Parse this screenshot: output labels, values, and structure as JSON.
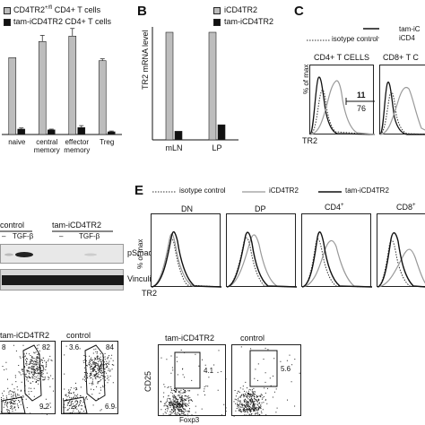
{
  "panelA": {
    "legend": [
      "CD4TR2+/fl CD4+ T cells",
      "tam-iCD4TR2 CD4+ T cells"
    ],
    "legend_sup": "+/fl",
    "categories": [
      "naive",
      "central\nmemory",
      "effector\nmemory",
      "Treg"
    ],
    "cat_line1": [
      "naive",
      "central",
      "effector",
      "Treg"
    ],
    "cat_line2": [
      "",
      "memory",
      "memory",
      ""
    ],
    "colors": {
      "control": "#bdbdbd",
      "tam": "#111111"
    }
  },
  "panelB": {
    "letter": "B",
    "legend": [
      "iCD4TR2",
      "tam-iCD4TR2"
    ],
    "ylabel": "TR2 mRNA level",
    "categories": [
      "mLN",
      "LP"
    ]
  },
  "panelC": {
    "letter": "C",
    "legend_dotted": "isotype control",
    "legend_right": [
      "tam-iC",
      "iCD4"
    ],
    "subplots": [
      "CD4+ T CELLS",
      "CD8+ T C"
    ],
    "ylabel": "% of max",
    "xlabel": "TR2",
    "gate_numbers": [
      "11",
      "76"
    ]
  },
  "panelD": {
    "col_labels": [
      "control",
      "tam-iCD4TR2"
    ],
    "treat_labels": [
      "–",
      "TGF-β",
      "–",
      "TGF-β"
    ],
    "row_labels": [
      "pSmad2",
      "Vinculin"
    ]
  },
  "panelE": {
    "letter": "E",
    "legend": [
      "isotype control",
      "iCD4TR2",
      "tam-iCD4TR2"
    ],
    "subplots": [
      "DN",
      "DP",
      "CD4+",
      "CD8+"
    ],
    "ylabel": "% of max",
    "xlabel": "TR2"
  },
  "panelF": {
    "labels": [
      "tam-iCD4TR2",
      "control"
    ],
    "left_numbers": [
      "8",
      "82",
      "9.2",
      "3.6",
      "84",
      "6.9"
    ]
  },
  "panelG": {
    "labels": [
      "tam-iCD4TR2",
      "control"
    ],
    "gate_numbers": [
      "4.1",
      "5.6"
    ],
    "ylabel": "CD25",
    "xlabel": "Foxp3"
  },
  "chart_data": [
    {
      "type": "bar",
      "categories": [
        "naive",
        "central memory",
        "effector memory",
        "Treg"
      ],
      "series": [
        {
          "name": "CD4TR2+/fl CD4+ T cells",
          "values": [
            10,
            12.1,
            12.8,
            9.6
          ]
        },
        {
          "name": "tam-iCD4TR2 CD4+ T cells",
          "values": [
            0.7,
            0.6,
            0.9,
            0.35
          ]
        }
      ],
      "errors": [
        [
          0,
          0.8,
          1.0,
          0.25
        ],
        [
          0.15,
          0.1,
          0.25,
          0.1
        ]
      ],
      "ylim": [
        0,
        14
      ]
    },
    {
      "type": "bar",
      "categories": [
        "mLN",
        "LP"
      ],
      "series": [
        {
          "name": "iCD4TR2",
          "values": [
            1.0,
            1.0
          ]
        },
        {
          "name": "tam-iCD4TR2",
          "values": [
            0.08,
            0.14
          ]
        }
      ],
      "ylim": [
        0,
        1.05
      ],
      "ylabel": "TR2 mRNA level"
    }
  ]
}
